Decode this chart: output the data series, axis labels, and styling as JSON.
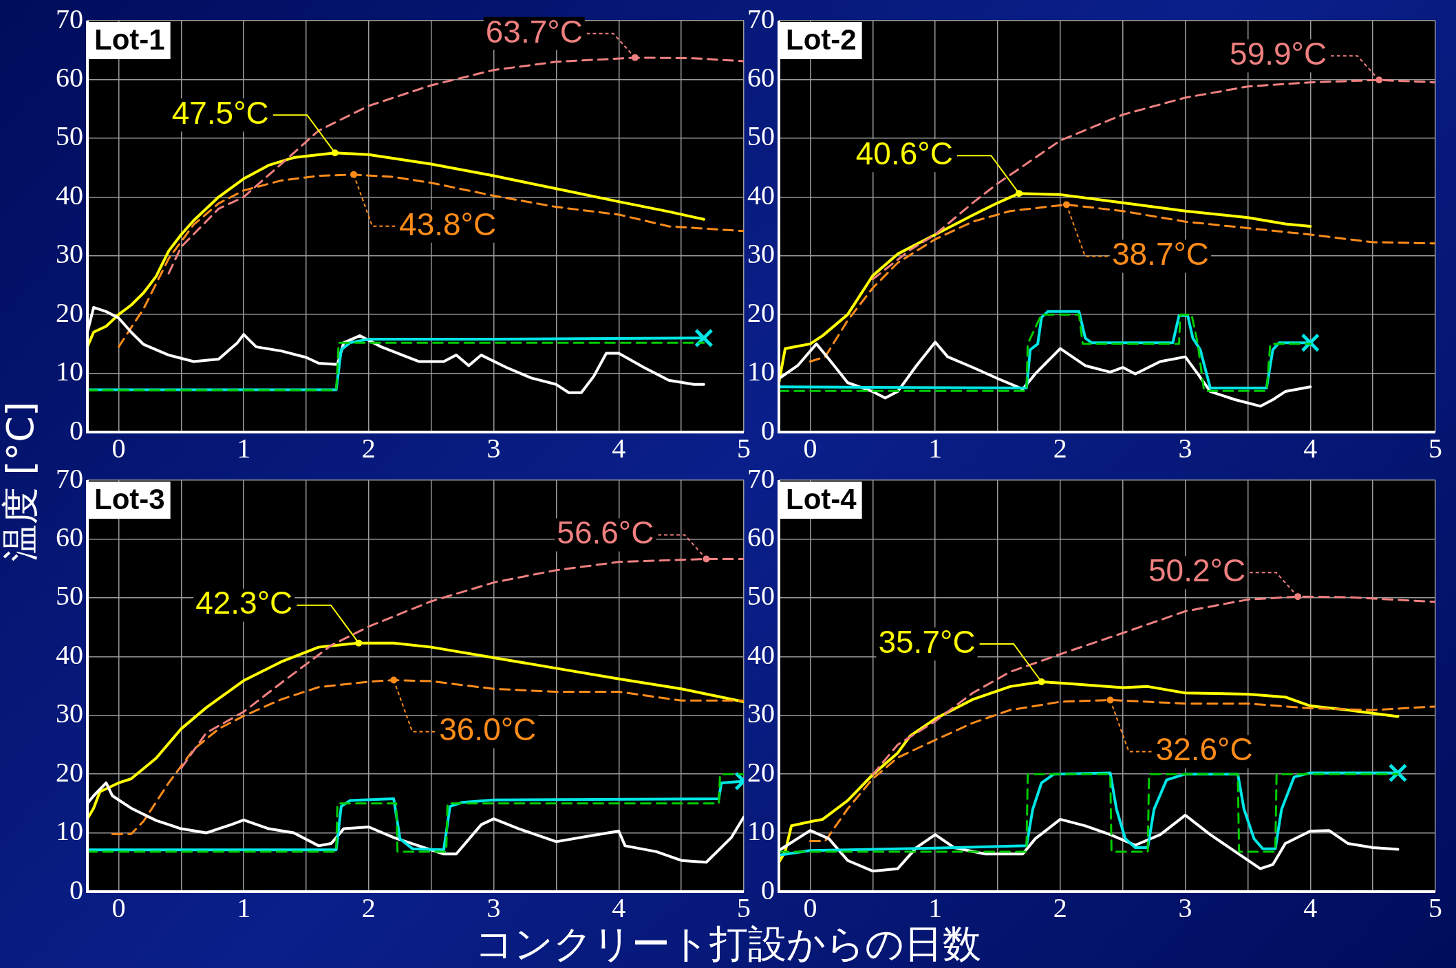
{
  "chart_data": [
    {
      "type": "line",
      "title": "Lot-1",
      "xlabel": "コンクリート打設からの日数",
      "ylabel": "温度 [°C]",
      "xlim": [
        -0.25,
        5
      ],
      "ylim": [
        0,
        70
      ],
      "xticks": [
        0,
        {
          "value": 0.5,
          "label": null
        },
        1,
        {
          "value": 1.5,
          "label": null
        },
        2,
        {
          "value": 2.5,
          "label": null
        },
        3,
        {
          "value": 3.5,
          "label": null
        },
        4,
        {
          "value": 4.5,
          "label": null
        },
        5
      ],
      "yticks": [
        0,
        10,
        20,
        30,
        40,
        50,
        60,
        70
      ],
      "grid": true,
      "annotations": [
        {
          "text": "47.5°C",
          "x": 1.73,
          "y": 47.5
        },
        {
          "text": "43.8°C",
          "x": 1.88,
          "y": 43.8
        },
        {
          "text": "63.7°C",
          "x": 4.13,
          "y": 63.7
        }
      ],
      "series": [
        {
          "type": "line",
          "color": "#ffff00",
          "line_style": "solid",
          "x": [
            -0.25,
            -0.2,
            -0.1,
            0,
            0.1,
            0.2,
            0.3,
            0.4,
            0.5,
            0.6,
            0.8,
            1.0,
            1.2,
            1.4,
            1.73,
            2.0,
            2.5,
            3.0,
            3.5,
            4.0,
            4.4,
            4.68
          ],
          "values": [
            14.5,
            17,
            18,
            20,
            21.6,
            23.7,
            26.5,
            30.8,
            33.6,
            36,
            40,
            43.1,
            45.4,
            46.7,
            47.5,
            47.2,
            45.6,
            43.6,
            41.4,
            39.2,
            37.5,
            36.2
          ]
        },
        {
          "type": "line",
          "color": "#ff8c1a",
          "line_style": "dashed",
          "x": [
            0,
            0.2,
            0.4,
            0.6,
            0.8,
            1.0,
            1.3,
            1.6,
            1.88,
            2.2,
            2.5,
            3,
            3.5,
            4,
            4.4,
            5
          ],
          "values": [
            14.5,
            21,
            29.5,
            35.3,
            38.9,
            41.1,
            42.8,
            43.6,
            43.8,
            43.4,
            42.4,
            40.2,
            38.3,
            37,
            35,
            34.2
          ]
        },
        {
          "type": "line",
          "color": "#f08080",
          "line_style": "dashed",
          "x": [
            0.4,
            0.5,
            0.8,
            1.0,
            1.3,
            1.6,
            2.0,
            2.5,
            3.0,
            3.5,
            4.13,
            4.6,
            5.0
          ],
          "values": [
            27,
            31.5,
            38,
            40,
            45.6,
            51.3,
            55.5,
            59,
            61.6,
            63,
            63.7,
            63.6,
            63.1
          ]
        },
        {
          "type": "line",
          "color": "#ffffff",
          "line_style": "solid",
          "x": [
            -0.25,
            -0.2,
            -0.1,
            0,
            0.1,
            0.2,
            0.4,
            0.6,
            0.8,
            0.95,
            1.0,
            1.1,
            1.3,
            1.5,
            1.6,
            1.75,
            1.8,
            1.93,
            2.1,
            2.4,
            2.6,
            2.7,
            2.8,
            2.9,
            3.1,
            3.3,
            3.5,
            3.6,
            3.7,
            3.8,
            3.9,
            4.0,
            4.2,
            4.4,
            4.6,
            4.68
          ],
          "values": [
            17,
            21.2,
            20.5,
            19.4,
            17,
            14.9,
            13.1,
            12,
            12.4,
            15.2,
            16.6,
            14.5,
            13.8,
            12.7,
            11.7,
            11.5,
            15.2,
            16.4,
            14.5,
            12,
            12,
            13.1,
            11.3,
            13.1,
            11,
            9.2,
            8.1,
            6.7,
            6.7,
            9.5,
            13.4,
            13.4,
            11,
            8.8,
            8.1,
            8.1
          ]
        },
        {
          "type": "line",
          "color": "#00e5e5",
          "line_style": "solid",
          "x": [
            -0.25,
            1.74,
            1.78,
            1.85,
            2.0,
            3.0,
            4.68
          ],
          "values": [
            7.2,
            7.2,
            14,
            15.2,
            15.8,
            15.8,
            16.0
          ]
        },
        {
          "type": "line",
          "color": "#00cc00",
          "line_style": "dashed",
          "x": [
            -0.25,
            1.74,
            1.76,
            4.68
          ],
          "values": [
            7.1,
            7.1,
            15.2,
            15.2
          ]
        },
        {
          "type": "scatter",
          "color": "#00e5e5",
          "marker": "cross",
          "x": [
            4.68
          ],
          "values": [
            16.0
          ]
        }
      ]
    },
    {
      "type": "line",
      "title": "Lot-2",
      "xlim": [
        -0.25,
        5
      ],
      "ylim": [
        0,
        70
      ],
      "xticks": [
        0,
        {
          "value": 0.5,
          "label": null
        },
        1,
        {
          "value": 1.5,
          "label": null
        },
        2,
        {
          "value": 2.5,
          "label": null
        },
        3,
        {
          "value": 3.5,
          "label": null
        },
        4,
        {
          "value": 4.5,
          "label": null
        },
        5
      ],
      "yticks": [
        0,
        10,
        20,
        30,
        40,
        50,
        60,
        70
      ],
      "grid": true,
      "annotations": [
        {
          "text": "40.6°C",
          "x": 1.67,
          "y": 40.6
        },
        {
          "text": "38.7°C",
          "x": 2.05,
          "y": 38.7
        },
        {
          "text": "59.9°C",
          "x": 4.55,
          "y": 59.9
        }
      ],
      "series": [
        {
          "type": "line",
          "color": "#ffff00",
          "line_style": "solid",
          "x": [
            -0.25,
            -0.2,
            -0.1,
            0,
            0.1,
            0.3,
            0.5,
            0.7,
            1.0,
            1.3,
            1.5,
            1.67,
            2.0,
            2.5,
            3.0,
            3.5,
            3.8,
            4.0
          ],
          "values": [
            8.4,
            14.2,
            14.6,
            15,
            16.4,
            20,
            26.6,
            30.3,
            33.6,
            36.9,
            39,
            40.6,
            40.4,
            39,
            37.6,
            36.5,
            35.4,
            35
          ]
        },
        {
          "type": "line",
          "color": "#ff8c1a",
          "line_style": "dashed",
          "x": [
            0,
            0.12,
            0.3,
            0.5,
            0.7,
            1.0,
            1.3,
            1.6,
            2.05,
            2.5,
            3.0,
            3.5,
            4.0,
            4.5,
            5
          ],
          "values": [
            12,
            12.8,
            19,
            24.5,
            28.8,
            32.8,
            35.8,
            37.6,
            38.7,
            37.6,
            35.8,
            34.7,
            33.6,
            32.3,
            32.1
          ]
        },
        {
          "type": "line",
          "color": "#f08080",
          "line_style": "dashed",
          "x": [
            0.5,
            0.8,
            1.0,
            1.3,
            1.5,
            2.0,
            2.5,
            3.0,
            3.5,
            4.0,
            4.55,
            5
          ],
          "values": [
            26,
            31,
            33.6,
            39,
            42.3,
            49.6,
            54,
            56.9,
            58.8,
            59.5,
            59.9,
            59.5
          ]
        },
        {
          "type": "line",
          "color": "#ffffff",
          "line_style": "solid",
          "x": [
            -0.25,
            -0.1,
            0.05,
            0.15,
            0.3,
            0.5,
            0.6,
            0.7,
            0.85,
            1.0,
            1.1,
            1.3,
            1.5,
            1.7,
            1.8,
            2.0,
            2.2,
            2.4,
            2.5,
            2.6,
            2.8,
            3.0,
            3.1,
            3.2,
            3.4,
            3.6,
            3.7,
            3.8,
            4.0
          ],
          "values": [
            9.1,
            11.3,
            15,
            12.4,
            8.4,
            6.9,
            5.8,
            6.9,
            11.3,
            15.3,
            12.8,
            11,
            9.1,
            7.3,
            9.9,
            14.2,
            11.3,
            10.2,
            11,
            9.9,
            12,
            12.8,
            9.9,
            6.9,
            5.5,
            4.4,
            5.5,
            6.9,
            7.7
          ]
        },
        {
          "type": "line",
          "color": "#00e5e5",
          "line_style": "solid",
          "x": [
            -0.25,
            1.73,
            1.76,
            1.82,
            1.85,
            1.9,
            2.15,
            2.2,
            2.25,
            2.9,
            2.95,
            3.02,
            3.06,
            3.12,
            3.2,
            3.65,
            3.7,
            3.75,
            4.0
          ],
          "values": [
            7.7,
            7.5,
            14,
            15,
            19.5,
            20.5,
            20.5,
            16,
            15.2,
            15.2,
            19.8,
            19.8,
            16,
            14,
            7.5,
            7.5,
            14,
            15.2,
            15.2
          ]
        },
        {
          "type": "line",
          "color": "#00cc00",
          "line_style": "dashed",
          "x": [
            -0.25,
            1.73,
            1.74,
            1.85,
            2.15,
            2.18,
            2.95,
            2.96,
            3.05,
            3.1,
            3.15,
            3.65,
            3.68,
            4.0
          ],
          "values": [
            7,
            7,
            15,
            20,
            20,
            15,
            15,
            20,
            20,
            15,
            7,
            7,
            15,
            15
          ]
        },
        {
          "type": "scatter",
          "color": "#00e5e5",
          "marker": "cross",
          "x": [
            4.0
          ],
          "values": [
            15.2
          ]
        }
      ]
    },
    {
      "type": "line",
      "title": "Lot-3",
      "xlim": [
        -0.25,
        5
      ],
      "ylim": [
        0,
        70
      ],
      "xticks": [
        0,
        {
          "value": 0.5,
          "label": null
        },
        1,
        {
          "value": 1.5,
          "label": null
        },
        2,
        {
          "value": 2.5,
          "label": null
        },
        3,
        {
          "value": 3.5,
          "label": null
        },
        4,
        {
          "value": 4.5,
          "label": null
        },
        5
      ],
      "yticks": [
        0,
        10,
        20,
        30,
        40,
        50,
        60,
        70
      ],
      "grid": true,
      "annotations": [
        {
          "text": "42.3°C",
          "x": 1.92,
          "y": 42.3
        },
        {
          "text": "36.0°C",
          "x": 2.2,
          "y": 36.0
        },
        {
          "text": "56.6°C",
          "x": 4.7,
          "y": 56.6
        }
      ],
      "series": [
        {
          "type": "line",
          "color": "#ffff00",
          "line_style": "solid",
          "x": [
            -0.25,
            -0.2,
            -0.15,
            0,
            0.1,
            0.3,
            0.5,
            0.7,
            1.0,
            1.3,
            1.6,
            1.92,
            2.2,
            2.5,
            3.0,
            3.5,
            4.0,
            4.5,
            5.0
          ],
          "values": [
            12.4,
            14.2,
            17,
            18.5,
            19.2,
            22.7,
            27.7,
            31.3,
            35.9,
            39.1,
            41.6,
            42.3,
            42.3,
            41.6,
            39.8,
            38,
            36.2,
            34.5,
            32.3
          ]
        },
        {
          "type": "line",
          "color": "#ff8c1a",
          "line_style": "dashed",
          "x": [
            -0.05,
            0.1,
            0.2,
            0.4,
            0.6,
            0.8,
            1.0,
            1.3,
            1.6,
            2.0,
            2.2,
            2.5,
            3.0,
            3.5,
            4.0,
            4.5,
            5.0
          ],
          "values": [
            9.8,
            9.8,
            12,
            18.5,
            24.2,
            27.7,
            29.9,
            32.7,
            34.8,
            35.7,
            36.0,
            35.8,
            34.5,
            34,
            34,
            32.5,
            32.5
          ]
        },
        {
          "type": "line",
          "color": "#f08080",
          "line_style": "dashed",
          "x": [
            0.5,
            0.7,
            1.0,
            1.3,
            1.7,
            2.0,
            2.5,
            3.0,
            3.5,
            4.0,
            4.7,
            5.0
          ],
          "values": [
            21,
            27,
            30.6,
            35.5,
            41.9,
            45.1,
            49.4,
            52.6,
            54.7,
            56.1,
            56.6,
            56.6
          ]
        },
        {
          "type": "line",
          "color": "#ffffff",
          "line_style": "solid",
          "x": [
            -0.25,
            -0.2,
            -0.1,
            -0.05,
            0.1,
            0.3,
            0.5,
            0.7,
            0.9,
            1.0,
            1.2,
            1.4,
            1.6,
            1.7,
            1.8,
            2.0,
            2.2,
            2.4,
            2.6,
            2.7,
            2.9,
            3.0,
            3.2,
            3.5,
            3.8,
            4.0,
            4.05,
            4.3,
            4.5,
            4.7,
            4.9,
            5.0
          ],
          "values": [
            15,
            16.3,
            18.5,
            16.3,
            14.2,
            12.1,
            10.7,
            10,
            11.4,
            12.2,
            10.7,
            10,
            7.8,
            8.2,
            10.7,
            11,
            9.2,
            7.8,
            6.4,
            6.4,
            11.4,
            12.4,
            10.7,
            8.5,
            9.6,
            10.3,
            7.8,
            6.8,
            5.3,
            5,
            9.2,
            12.7
          ]
        },
        {
          "type": "line",
          "color": "#00e5e5",
          "line_style": "solid",
          "x": [
            -0.25,
            1.74,
            1.78,
            1.85,
            2.2,
            2.25,
            2.35,
            2.6,
            2.65,
            2.75,
            3.0,
            4.8,
            4.82,
            5.0
          ],
          "values": [
            7.1,
            7.1,
            14.5,
            15.5,
            15.8,
            9,
            7.3,
            7.1,
            14.5,
            15.2,
            15.6,
            15.8,
            18.5,
            18.8
          ]
        },
        {
          "type": "line",
          "color": "#00cc00",
          "line_style": "dashed",
          "x": [
            -0.25,
            1.74,
            1.75,
            2.22,
            2.23,
            2.62,
            2.63,
            4.8,
            4.81,
            5
          ],
          "values": [
            6.8,
            6.8,
            15,
            15,
            6.8,
            6.8,
            15,
            15,
            20,
            20
          ]
        },
        {
          "type": "scatter",
          "color": "#00e5e5",
          "marker": "cross",
          "x": [
            5.0
          ],
          "values": [
            18.8
          ]
        }
      ]
    },
    {
      "type": "line",
      "title": "Lot-4",
      "xlim": [
        -0.25,
        5
      ],
      "ylim": [
        0,
        70
      ],
      "xticks": [
        0,
        {
          "value": 0.5,
          "label": null
        },
        1,
        {
          "value": 1.5,
          "label": null
        },
        2,
        {
          "value": 2.5,
          "label": null
        },
        3,
        {
          "value": 3.5,
          "label": null
        },
        4,
        {
          "value": 4.5,
          "label": null
        },
        5
      ],
      "yticks": [
        0,
        10,
        20,
        30,
        40,
        50,
        60,
        70
      ],
      "grid": true,
      "annotations": [
        {
          "text": "35.7°C",
          "x": 1.85,
          "y": 35.7
        },
        {
          "text": "32.6°C",
          "x": 2.4,
          "y": 32.6
        },
        {
          "text": "50.2°C",
          "x": 3.9,
          "y": 50.2
        }
      ],
      "series": [
        {
          "type": "line",
          "color": "#ffff00",
          "line_style": "solid",
          "x": [
            -0.25,
            -0.2,
            -0.15,
            0,
            0.1,
            0.3,
            0.5,
            0.7,
            0.8,
            1.0,
            1.3,
            1.6,
            1.85,
            2.0,
            2.5,
            2.7,
            3.0,
            3.5,
            3.8,
            4.0,
            4.3,
            4.7
          ],
          "values": [
            5,
            6.8,
            11.2,
            11.9,
            12.3,
            15.5,
            19.9,
            23.6,
            26.5,
            29.4,
            32.7,
            34.9,
            35.7,
            35.5,
            34.7,
            34.9,
            33.8,
            33.6,
            33.1,
            31.6,
            30.9,
            29.8
          ]
        },
        {
          "type": "line",
          "color": "#ff8c1a",
          "line_style": "dashed",
          "x": [
            0,
            0.12,
            0.3,
            0.5,
            0.7,
            1.0,
            1.3,
            1.6,
            2.0,
            2.4,
            2.7,
            3.0,
            3.5,
            4.0,
            4.5,
            5.0
          ],
          "values": [
            8.6,
            8.6,
            14.1,
            19.2,
            22.8,
            25.8,
            28.7,
            30.9,
            32.3,
            32.6,
            32.3,
            32,
            32,
            31.2,
            30.9,
            31.5
          ]
        },
        {
          "type": "line",
          "color": "#f08080",
          "line_style": "dashed",
          "x": [
            0.5,
            0.7,
            1.0,
            1.3,
            1.6,
            2.0,
            2.5,
            3.0,
            3.5,
            3.9,
            4.3,
            5.0
          ],
          "values": [
            19.9,
            25,
            29,
            33.8,
            37.4,
            40.4,
            44,
            47.7,
            49.7,
            50.2,
            50.1,
            49.3
          ]
        },
        {
          "type": "line",
          "color": "#ffffff",
          "line_style": "solid",
          "x": [
            -0.25,
            0,
            0.15,
            0.3,
            0.5,
            0.7,
            0.85,
            1.0,
            1.15,
            1.4,
            1.7,
            1.8,
            2.0,
            2.2,
            2.4,
            2.6,
            2.8,
            3.0,
            3.2,
            3.4,
            3.6,
            3.7,
            3.8,
            4.0,
            4.15,
            4.3,
            4.5,
            4.7
          ],
          "values": [
            7,
            10.4,
            9,
            5.3,
            3.5,
            3.9,
            7.5,
            9.7,
            7.5,
            6.4,
            6.4,
            9,
            12.3,
            11.2,
            9.7,
            7.9,
            9.7,
            13,
            9.7,
            6.8,
            3.9,
            4.6,
            8.2,
            10.3,
            10.4,
            8.2,
            7.5,
            7.2
          ]
        },
        {
          "type": "line",
          "color": "#00e5e5",
          "line_style": "solid",
          "x": [
            -0.25,
            0,
            1.0,
            1.73,
            1.78,
            1.85,
            1.95,
            2.4,
            2.45,
            2.52,
            2.6,
            2.7,
            2.75,
            2.85,
            3.0,
            3.42,
            3.47,
            3.55,
            3.62,
            3.72,
            3.77,
            3.87,
            4.0,
            4.7
          ],
          "values": [
            6.2,
            7,
            7.4,
            7.8,
            14,
            18.5,
            20,
            20.2,
            14,
            9,
            7.5,
            7.5,
            14,
            19,
            20,
            20,
            14,
            9,
            7.3,
            7.3,
            14,
            19.5,
            20.2,
            20.2
          ]
        },
        {
          "type": "line",
          "color": "#00cc00",
          "line_style": "dashed",
          "x": [
            -0.25,
            1.73,
            1.74,
            2.4,
            2.41,
            2.7,
            2.71,
            3.42,
            3.43,
            3.72,
            3.73,
            4.7
          ],
          "values": [
            6.8,
            6.8,
            20,
            20,
            6.8,
            6.8,
            20,
            20,
            6.8,
            6.8,
            20,
            20
          ]
        },
        {
          "type": "scatter",
          "color": "#00e5e5",
          "marker": "cross",
          "x": [
            4.7
          ],
          "values": [
            20.2
          ]
        }
      ]
    }
  ]
}
